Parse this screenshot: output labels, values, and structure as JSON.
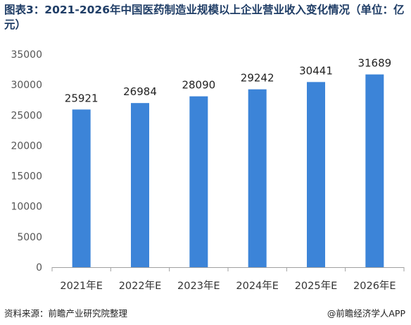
{
  "title": "图表3：2021-2026年中国医药制造业规模以上企业营业收入变化情况（单位：亿元）",
  "source": "资料来源：前瞻产业研究院整理",
  "credit": "@前瞻经济学人APP",
  "colors": {
    "bar": "#3c84d8",
    "axis": "#a0a0a0",
    "title": "#1f3d66"
  },
  "chart_data": {
    "type": "bar",
    "title": "图表3：2021-2026年中国医药制造业规模以上企业营业收入变化情况（单位：亿元）",
    "xlabel": "",
    "ylabel": "",
    "categories": [
      "2021年E",
      "2022年E",
      "2023年E",
      "2024年E",
      "2025年E",
      "2026年E"
    ],
    "values": [
      25921,
      26984,
      28090,
      29242,
      30441,
      31689
    ],
    "ylim": [
      0,
      35000
    ],
    "yticks": [
      0,
      5000,
      10000,
      15000,
      20000,
      25000,
      30000,
      35000
    ],
    "grid": false,
    "legend": "none"
  }
}
